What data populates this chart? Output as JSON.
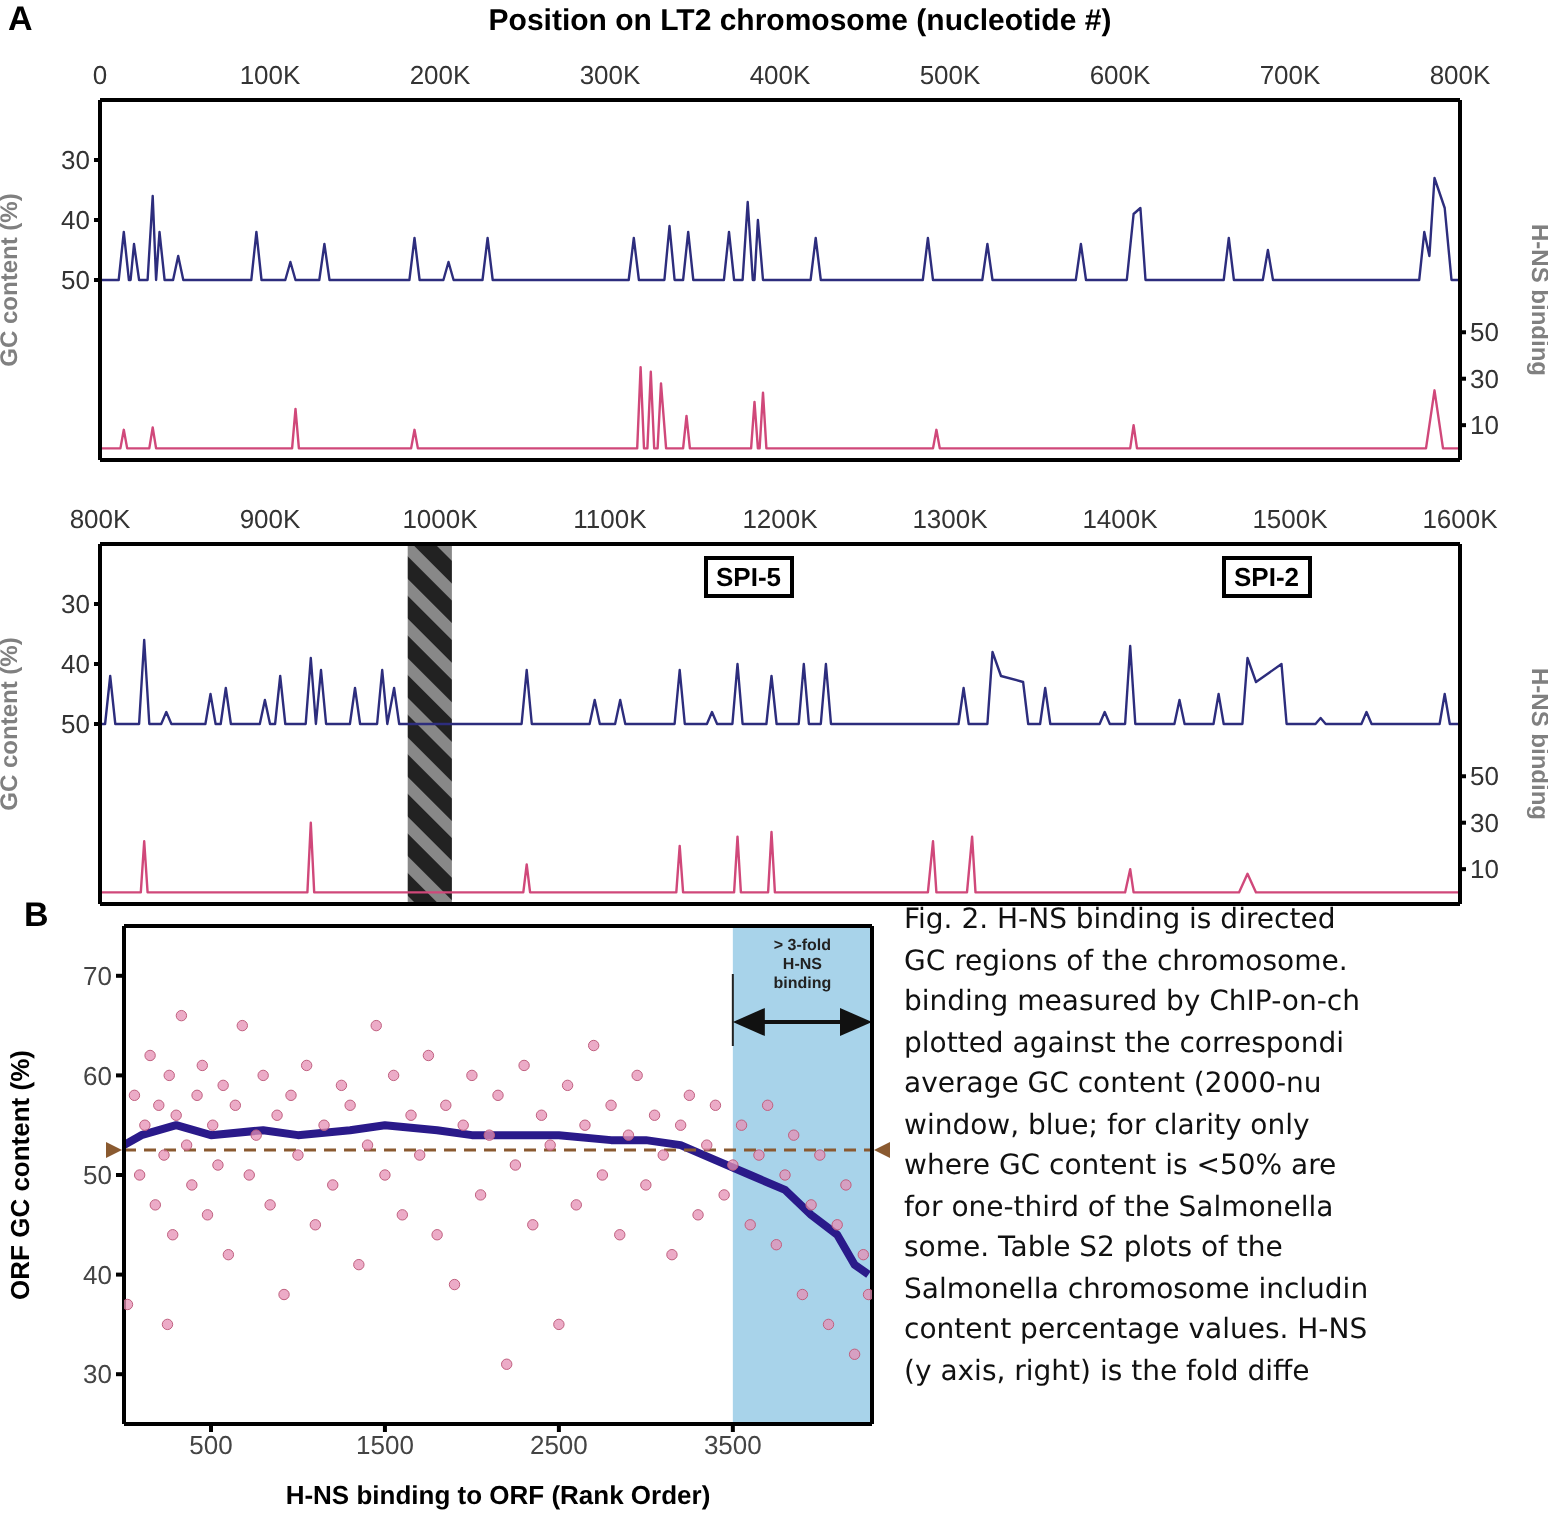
{
  "chart_data": [
    {
      "type": "line",
      "xlabel": "Position on LT2 chromosome (nucleotide #)",
      "ylabel": "GC content (%)",
      "y2label": "H-NS binding",
      "annotations": [
        "A"
      ],
      "xlim": [
        0,
        800000
      ],
      "xticks": [
        0,
        {
          "value": 100000,
          "label": "100K"
        },
        {
          "value": 200000,
          "label": "200K"
        },
        {
          "value": 300000,
          "label": "300K"
        },
        {
          "value": 400000,
          "label": "400K"
        },
        {
          "value": 500000,
          "label": "500K"
        },
        {
          "value": 600000,
          "label": "600K"
        },
        {
          "value": 700000,
          "label": "700K"
        },
        {
          "value": 800000,
          "label": "800K"
        }
      ],
      "ylim": [
        80,
        20
      ],
      "yticks": [
        30,
        40,
        50
      ],
      "y2lim": [
        -5,
        150
      ],
      "y2ticks": [
        10,
        30,
        50
      ],
      "series": [
        {
          "color": "#2d2d7d",
          "x": [
            0,
            11000,
            14000,
            17000,
            18000,
            20000,
            23000,
            28000,
            31000,
            33000,
            35000,
            38000,
            43000,
            46000,
            49000,
            89000,
            92000,
            95000,
            109000,
            112000,
            115000,
            129000,
            132000,
            135000,
            182000,
            185000,
            188000,
            202000,
            205000,
            208000,
            225000,
            228000,
            231000,
            311000,
            314000,
            317000,
            332000,
            335000,
            338000,
            343000,
            346000,
            349000,
            367000,
            370000,
            373000,
            378000,
            381000,
            384000,
            385000,
            387000,
            390000,
            418000,
            421000,
            424000,
            484000,
            487000,
            490000,
            519000,
            522000,
            525000,
            574000,
            577000,
            580000,
            604000,
            608000,
            612000,
            615000,
            661000,
            664000,
            667000,
            684000,
            687000,
            690000,
            776000,
            779000,
            782000,
            785000,
            791000,
            795000,
            800000
          ],
          "values": [
            50,
            50,
            42,
            50,
            50,
            44,
            50,
            50,
            36,
            50,
            42,
            50,
            50,
            46,
            50,
            50,
            42,
            50,
            50,
            47,
            50,
            50,
            44,
            50,
            50,
            43,
            50,
            50,
            47,
            50,
            50,
            43,
            50,
            50,
            43,
            50,
            50,
            41,
            50,
            50,
            42,
            50,
            50,
            42,
            50,
            50,
            37,
            50,
            50,
            40,
            50,
            50,
            43,
            50,
            50,
            43,
            50,
            50,
            44,
            50,
            50,
            44,
            50,
            50,
            39,
            38,
            50,
            50,
            43,
            50,
            50,
            45,
            50,
            50,
            42,
            46,
            33,
            38,
            50,
            50
          ]
        },
        {
          "color": "#d0487a",
          "axis": "y2",
          "x": [
            0,
            12000,
            14000,
            16000,
            29000,
            31000,
            33000,
            113000,
            115000,
            117000,
            183000,
            185000,
            187000,
            316000,
            318000,
            320000,
            322000,
            324000,
            326000,
            328000,
            330000,
            333000,
            343000,
            345000,
            347000,
            383000,
            385000,
            387000,
            388000,
            390000,
            392000,
            490000,
            492000,
            494000,
            606000,
            608000,
            610000,
            780000,
            785000,
            790000,
            800000
          ],
          "values": [
            0,
            0,
            8,
            0,
            0,
            9,
            0,
            0,
            17,
            0,
            0,
            8,
            0,
            0,
            35,
            0,
            0,
            33,
            0,
            0,
            28,
            0,
            0,
            14,
            0,
            0,
            20,
            0,
            0,
            24,
            0,
            0,
            8,
            0,
            0,
            10,
            0,
            0,
            25,
            0,
            0
          ]
        }
      ]
    },
    {
      "type": "line",
      "ylabel": "GC content (%)",
      "y2label": "H-NS binding",
      "annotations": [
        "SPI-5",
        "SPI-2"
      ],
      "bands": [
        {
          "axis": "x",
          "from": 981000,
          "to": 1007000,
          "color": "#222222"
        }
      ],
      "xlim": [
        800000,
        1600000
      ],
      "xticks": [
        {
          "value": 800000,
          "label": "800K"
        },
        {
          "value": 900000,
          "label": "900K"
        },
        {
          "value": 1000000,
          "label": "1000K"
        },
        {
          "value": 1100000,
          "label": "1100K"
        },
        {
          "value": 1200000,
          "label": "1200K"
        },
        {
          "value": 1300000,
          "label": "1300K"
        },
        {
          "value": 1400000,
          "label": "1400K"
        },
        {
          "value": 1500000,
          "label": "1500K"
        },
        {
          "value": 1600000,
          "label": "1600K"
        }
      ],
      "ylim": [
        80,
        20
      ],
      "yticks": [
        30,
        40,
        50
      ],
      "y2lim": [
        -5,
        150
      ],
      "y2ticks": [
        10,
        30,
        50
      ],
      "series": [
        {
          "color": "#2d2d7d",
          "x": [
            800000,
            803000,
            806000,
            809000,
            823000,
            826000,
            829000,
            836000,
            839000,
            842000,
            862000,
            865000,
            868000,
            871000,
            874000,
            877000,
            894000,
            897000,
            900000,
            903000,
            906000,
            909000,
            921000,
            924000,
            927000,
            930000,
            933000,
            947000,
            950000,
            953000,
            963000,
            966000,
            969000,
            973000,
            976000,
            1048000,
            1051000,
            1054000,
            1088000,
            1091000,
            1094000,
            1103000,
            1106000,
            1109000,
            1138000,
            1141000,
            1144000,
            1157000,
            1160000,
            1163000,
            1172000,
            1175000,
            1178000,
            1192000,
            1195000,
            1198000,
            1211000,
            1214000,
            1217000,
            1224000,
            1227000,
            1230000,
            1305000,
            1308000,
            1311000,
            1322000,
            1325000,
            1330000,
            1343000,
            1346000,
            1353000,
            1356000,
            1359000,
            1388000,
            1391000,
            1394000,
            1403000,
            1406000,
            1409000,
            1432000,
            1435000,
            1438000,
            1455000,
            1458000,
            1461000,
            1472000,
            1475000,
            1480000,
            1495000,
            1498000,
            1515000,
            1518000,
            1521000,
            1542000,
            1545000,
            1548000,
            1588000,
            1591000,
            1594000,
            1600000
          ],
          "values": [
            50,
            50,
            42,
            50,
            50,
            36,
            50,
            50,
            48,
            50,
            50,
            45,
            50,
            50,
            44,
            50,
            50,
            46,
            50,
            50,
            42,
            50,
            50,
            39,
            50,
            41,
            50,
            50,
            44,
            50,
            50,
            41,
            50,
            44,
            50,
            50,
            41,
            50,
            50,
            46,
            50,
            50,
            46,
            50,
            50,
            41,
            50,
            50,
            48,
            50,
            50,
            40,
            50,
            50,
            42,
            50,
            50,
            40,
            50,
            50,
            40,
            50,
            50,
            44,
            50,
            50,
            38,
            42,
            43,
            50,
            50,
            44,
            50,
            50,
            48,
            50,
            50,
            37,
            50,
            50,
            46,
            50,
            50,
            45,
            50,
            50,
            39,
            43,
            40,
            50,
            50,
            49,
            50,
            50,
            48,
            50,
            50,
            45,
            50,
            50
          ]
        },
        {
          "color": "#d0487a",
          "axis": "y2",
          "x": [
            800000,
            824000,
            826000,
            828000,
            922000,
            924000,
            926000,
            1049000,
            1051000,
            1053000,
            1139000,
            1141000,
            1143000,
            1173000,
            1175000,
            1177000,
            1193000,
            1195000,
            1197000,
            1287000,
            1290000,
            1292000,
            1310000,
            1313000,
            1315000,
            1403000,
            1406000,
            1408000,
            1470000,
            1475000,
            1480000,
            1600000
          ],
          "values": [
            0,
            0,
            22,
            0,
            0,
            30,
            0,
            0,
            12,
            0,
            0,
            20,
            0,
            0,
            24,
            0,
            0,
            26,
            0,
            0,
            22,
            0,
            0,
            24,
            0,
            0,
            10,
            0,
            0,
            8,
            0,
            0
          ]
        }
      ]
    },
    {
      "type": "scatter",
      "xlabel": "H-NS binding to ORF (Rank Order)",
      "ylabel": "ORF GC content (%)",
      "annotations": [
        "B",
        "Fig. 2. H-NS binding is directed\nGC regions of the chromosome.\nbinding measured by ChIP-on-ch\nplotted against the correspondi\naverage GC content (2000-nu\nwindow, blue; for clarity only\nwhere GC content is <50% are\nfor one-third of the Salmonella\nsome. Table S2 plots of the\nSalmonella chromosome includin\ncontent percentage values. H-NS\n(y axis, right) is the fold diffe"
      ],
      "bands": [
        {
          "axis": "x",
          "from": 3500,
          "to": 4300,
          "label": "> 3-fold H-NS binding",
          "color": "#a8d3ea"
        }
      ],
      "ref_lines": [
        {
          "axis": "y",
          "value": 52.5,
          "color": "#8a5a30",
          "line_style": "dashed"
        }
      ],
      "xlim": [
        0,
        4300
      ],
      "xticks": [
        500,
        1500,
        2500,
        3500
      ],
      "ylim": [
        25,
        75
      ],
      "yticks": [
        30,
        40,
        50,
        60,
        70
      ],
      "series": [
        {
          "color": "#e58fb4",
          "marker": "circle",
          "x": [
            20,
            60,
            90,
            120,
            150,
            180,
            200,
            230,
            250,
            260,
            280,
            300,
            330,
            360,
            390,
            420,
            450,
            480,
            510,
            540,
            570,
            600,
            640,
            680,
            720,
            760,
            800,
            840,
            880,
            920,
            960,
            1000,
            1050,
            1100,
            1150,
            1200,
            1250,
            1300,
            1350,
            1400,
            1450,
            1500,
            1550,
            1600,
            1650,
            1700,
            1750,
            1800,
            1850,
            1900,
            1950,
            2000,
            2050,
            2100,
            2150,
            2200,
            2250,
            2300,
            2350,
            2400,
            2450,
            2500,
            2550,
            2600,
            2650,
            2700,
            2750,
            2800,
            2850,
            2900,
            2950,
            3000,
            3050,
            3100,
            3150,
            3200,
            3250,
            3300,
            3350,
            3400,
            3450,
            3500,
            3550,
            3600,
            3650,
            3700,
            3750,
            3800,
            3850,
            3900,
            3950,
            4000,
            4050,
            4100,
            4150,
            4200,
            4250,
            4280
          ],
          "values": [
            37,
            58,
            50,
            55,
            62,
            47,
            57,
            52,
            35,
            60,
            44,
            56,
            66,
            53,
            49,
            58,
            61,
            46,
            55,
            51,
            59,
            42,
            57,
            65,
            50,
            54,
            60,
            47,
            56,
            38,
            58,
            52,
            61,
            45,
            55,
            49,
            59,
            57,
            41,
            53,
            65,
            50,
            60,
            46,
            56,
            52,
            62,
            44,
            57,
            39,
            55,
            60,
            48,
            54,
            58,
            31,
            51,
            61,
            45,
            56,
            53,
            35,
            59,
            47,
            55,
            63,
            50,
            57,
            44,
            54,
            60,
            49,
            56,
            52,
            42,
            55,
            58,
            46,
            53,
            57,
            48,
            51,
            55,
            45,
            52,
            57,
            43,
            50,
            54,
            38,
            47,
            52,
            35,
            45,
            49,
            32,
            42,
            38
          ]
        },
        {
          "type": "line",
          "color": "#2a1a8a",
          "x": [
            0,
            100,
            300,
            500,
            800,
            1000,
            1300,
            1500,
            1800,
            2000,
            2300,
            2500,
            2800,
            3000,
            3200,
            3400,
            3600,
            3800,
            3950,
            4100,
            4200,
            4280
          ],
          "values": [
            53,
            54,
            55,
            54,
            54.5,
            54,
            54.5,
            55,
            54.5,
            54,
            54,
            54,
            53.5,
            53.5,
            53,
            51.5,
            50,
            48.5,
            46,
            44,
            41,
            40
          ]
        }
      ]
    }
  ]
}
